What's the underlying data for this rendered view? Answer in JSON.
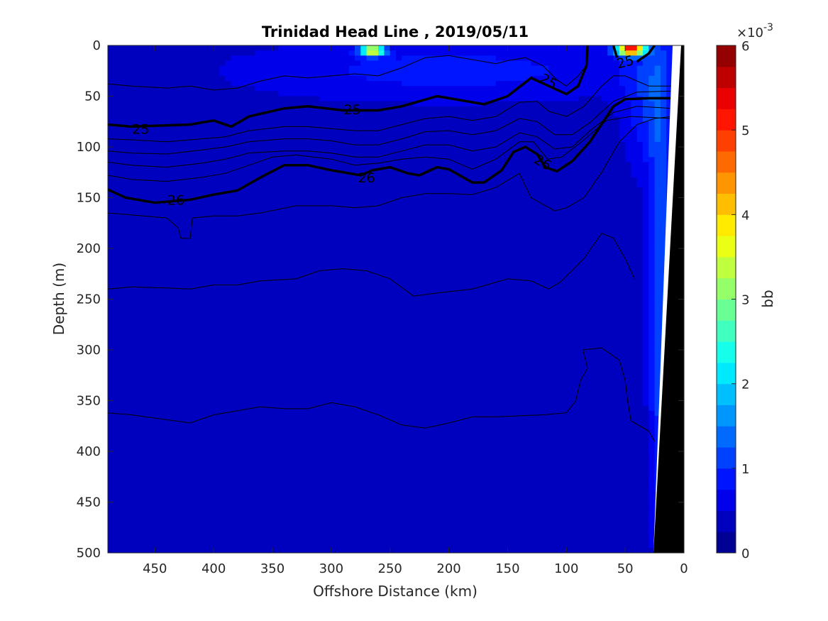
{
  "chart_data": {
    "type": "heatmap",
    "title": "Trinidad Head Line , 2019/05/11",
    "xlabel": "Offshore Distance (km)",
    "ylabel": "Depth (m)",
    "xlim": [
      490,
      0
    ],
    "ylim": [
      500,
      0
    ],
    "x_reversed": true,
    "y_reversed": true,
    "x_ticks": [
      450,
      400,
      350,
      300,
      250,
      200,
      150,
      100,
      50,
      0
    ],
    "y_ticks": [
      0,
      50,
      100,
      150,
      200,
      250,
      300,
      350,
      400,
      450,
      500
    ],
    "colorbar": {
      "label": "bb",
      "multiplier": "×10",
      "exponent": "-3",
      "range": [
        0,
        6
      ],
      "ticks": [
        0,
        1,
        2,
        3,
        4,
        5,
        6
      ],
      "colormap": "jet"
    },
    "bb_field": {
      "units_scale": 0.001,
      "background": 0.35,
      "features": [
        {
          "x": 265,
          "y": 5,
          "sx": 10,
          "sy": 5,
          "v": 3.6
        },
        {
          "x": 45,
          "y": 4,
          "sx": 12,
          "sy": 6,
          "v": 4.9
        },
        {
          "x": 30,
          "y": 55,
          "sx": 22,
          "sy": 70,
          "v": 0.6
        },
        {
          "x": 20,
          "y": 250,
          "sx": 10,
          "sy": 220,
          "v": 0.9
        },
        {
          "x": 200,
          "y": 25,
          "sx": 180,
          "sy": 30,
          "v": 0.5
        }
      ]
    },
    "isopycnal_labels": [
      {
        "x": 462,
        "y": 82,
        "text": "25",
        "rot": 0
      },
      {
        "x": 282,
        "y": 63,
        "text": "25",
        "rot": 0
      },
      {
        "x": 115,
        "y": 35,
        "text": "25",
        "rot": 30
      },
      {
        "x": 50,
        "y": 16,
        "text": "25",
        "rot": -15
      },
      {
        "x": 432,
        "y": 152,
        "text": "26",
        "rot": 0
      },
      {
        "x": 270,
        "y": 130,
        "text": "26",
        "rot": 0
      },
      {
        "x": 120,
        "y": 115,
        "text": "26",
        "rot": 30
      }
    ],
    "contours_major": [
      {
        "label": "25",
        "points": [
          [
            490,
            78
          ],
          [
            470,
            80
          ],
          [
            420,
            78
          ],
          [
            400,
            74
          ],
          [
            385,
            80
          ],
          [
            370,
            70
          ],
          [
            340,
            62
          ],
          [
            320,
            60
          ],
          [
            290,
            64
          ],
          [
            260,
            64
          ],
          [
            240,
            60
          ],
          [
            210,
            50
          ],
          [
            190,
            54
          ],
          [
            170,
            58
          ],
          [
            150,
            50
          ],
          [
            130,
            32
          ],
          [
            115,
            40
          ],
          [
            100,
            48
          ],
          [
            90,
            40
          ],
          [
            83,
            20
          ],
          [
            82,
            0
          ]
        ]
      },
      {
        "label": "25",
        "points": [
          [
            60,
            0
          ],
          [
            57,
            12
          ]
        ]
      },
      {
        "label": "25",
        "points": [
          [
            40,
            16
          ],
          [
            30,
            8
          ],
          [
            25,
            0
          ]
        ]
      },
      {
        "label": "26",
        "points": [
          [
            490,
            142
          ],
          [
            475,
            150
          ],
          [
            450,
            155
          ],
          [
            420,
            152
          ],
          [
            400,
            147
          ],
          [
            380,
            143
          ],
          [
            360,
            130
          ],
          [
            340,
            118
          ],
          [
            320,
            118
          ],
          [
            300,
            123
          ],
          [
            275,
            128
          ],
          [
            265,
            123
          ],
          [
            250,
            120
          ],
          [
            235,
            126
          ],
          [
            225,
            128
          ],
          [
            210,
            120
          ],
          [
            200,
            122
          ],
          [
            180,
            135
          ],
          [
            170,
            135
          ],
          [
            155,
            123
          ],
          [
            145,
            105
          ],
          [
            135,
            100
          ],
          [
            125,
            107
          ],
          [
            118,
            120
          ],
          [
            108,
            124
          ],
          [
            95,
            114
          ],
          [
            80,
            95
          ],
          [
            60,
            60
          ],
          [
            50,
            53
          ],
          [
            30,
            52
          ],
          [
            10,
            52
          ]
        ]
      }
    ],
    "contours_minor": [
      {
        "points": [
          [
            490,
            38
          ],
          [
            470,
            40
          ],
          [
            440,
            42
          ],
          [
            420,
            40
          ],
          [
            400,
            44
          ],
          [
            380,
            42
          ],
          [
            360,
            35
          ],
          [
            340,
            30
          ],
          [
            320,
            32
          ],
          [
            300,
            30
          ],
          [
            280,
            28
          ],
          [
            260,
            30
          ],
          [
            240,
            22
          ],
          [
            220,
            12
          ],
          [
            200,
            10
          ],
          [
            180,
            14
          ],
          [
            160,
            18
          ],
          [
            150,
            15
          ],
          [
            135,
            12
          ],
          [
            120,
            20
          ],
          [
            108,
            34
          ],
          [
            100,
            40
          ],
          [
            90,
            30
          ],
          [
            82,
            18
          ]
        ]
      },
      {
        "points": [
          [
            490,
            92
          ],
          [
            470,
            93
          ],
          [
            440,
            95
          ],
          [
            410,
            92
          ],
          [
            390,
            90
          ],
          [
            370,
            84
          ],
          [
            340,
            80
          ],
          [
            320,
            80
          ],
          [
            300,
            82
          ],
          [
            280,
            84
          ],
          [
            260,
            84
          ],
          [
            240,
            78
          ],
          [
            220,
            72
          ],
          [
            200,
            70
          ],
          [
            180,
            74
          ],
          [
            160,
            70
          ],
          [
            140,
            56
          ],
          [
            125,
            55
          ],
          [
            115,
            65
          ],
          [
            100,
            70
          ],
          [
            85,
            60
          ],
          [
            70,
            40
          ],
          [
            60,
            30
          ],
          [
            50,
            30
          ],
          [
            30,
            40
          ],
          [
            10,
            40
          ]
        ]
      },
      {
        "points": [
          [
            490,
            104
          ],
          [
            470,
            106
          ],
          [
            440,
            107
          ],
          [
            410,
            103
          ],
          [
            390,
            100
          ],
          [
            370,
            95
          ],
          [
            340,
            92
          ],
          [
            320,
            92
          ],
          [
            300,
            94
          ],
          [
            280,
            98
          ],
          [
            260,
            98
          ],
          [
            240,
            92
          ],
          [
            220,
            85
          ],
          [
            200,
            84
          ],
          [
            180,
            88
          ],
          [
            160,
            84
          ],
          [
            140,
            72
          ],
          [
            125,
            75
          ],
          [
            110,
            88
          ],
          [
            95,
            88
          ],
          [
            80,
            76
          ],
          [
            60,
            55
          ],
          [
            40,
            46
          ],
          [
            10,
            45
          ]
        ]
      },
      {
        "points": [
          [
            490,
            115
          ],
          [
            470,
            118
          ],
          [
            440,
            120
          ],
          [
            410,
            116
          ],
          [
            390,
            112
          ],
          [
            370,
            106
          ],
          [
            340,
            104
          ],
          [
            320,
            104
          ],
          [
            300,
            106
          ],
          [
            280,
            110
          ],
          [
            260,
            110
          ],
          [
            240,
            104
          ],
          [
            220,
            98
          ],
          [
            200,
            98
          ],
          [
            180,
            104
          ],
          [
            160,
            100
          ],
          [
            140,
            86
          ],
          [
            125,
            90
          ],
          [
            110,
            102
          ],
          [
            95,
            100
          ],
          [
            80,
            84
          ],
          [
            60,
            66
          ],
          [
            40,
            60
          ],
          [
            10,
            62
          ]
        ]
      },
      {
        "points": [
          [
            490,
            128
          ],
          [
            470,
            132
          ],
          [
            440,
            134
          ],
          [
            410,
            130
          ],
          [
            390,
            126
          ],
          [
            370,
            118
          ],
          [
            350,
            110
          ],
          [
            330,
            108
          ],
          [
            300,
            112
          ],
          [
            280,
            118
          ],
          [
            260,
            116
          ],
          [
            240,
            112
          ],
          [
            220,
            110
          ],
          [
            200,
            112
          ],
          [
            180,
            122
          ],
          [
            160,
            112
          ],
          [
            140,
            95
          ],
          [
            128,
            95
          ],
          [
            116,
            112
          ],
          [
            104,
            110
          ],
          [
            86,
            94
          ],
          [
            66,
            74
          ],
          [
            45,
            70
          ],
          [
            10,
            72
          ]
        ]
      },
      {
        "points": [
          [
            490,
            165
          ],
          [
            460,
            168
          ],
          [
            440,
            170
          ],
          [
            430,
            180
          ],
          [
            428,
            190
          ],
          [
            420,
            190
          ],
          [
            418,
            170
          ],
          [
            400,
            168
          ],
          [
            380,
            168
          ],
          [
            360,
            165
          ],
          [
            330,
            158
          ],
          [
            300,
            158
          ],
          [
            280,
            160
          ],
          [
            260,
            158
          ],
          [
            240,
            150
          ],
          [
            220,
            146
          ],
          [
            200,
            146
          ],
          [
            180,
            147
          ],
          [
            160,
            140
          ],
          [
            140,
            126
          ],
          [
            130,
            150
          ],
          [
            110,
            163
          ],
          [
            100,
            160
          ],
          [
            85,
            150
          ],
          [
            70,
            125
          ],
          [
            55,
            95
          ],
          [
            40,
            78
          ],
          [
            25,
            72
          ],
          [
            10,
            70
          ]
        ]
      },
      {
        "points": [
          [
            490,
            240
          ],
          [
            470,
            238
          ],
          [
            440,
            239
          ],
          [
            420,
            240
          ],
          [
            400,
            236
          ],
          [
            380,
            236
          ],
          [
            360,
            232
          ],
          [
            330,
            230
          ],
          [
            310,
            222
          ],
          [
            290,
            220
          ],
          [
            270,
            222
          ],
          [
            250,
            230
          ],
          [
            230,
            247
          ],
          [
            210,
            244
          ],
          [
            180,
            240
          ],
          [
            150,
            230
          ],
          [
            130,
            232
          ],
          [
            115,
            240
          ],
          [
            105,
            233
          ],
          [
            85,
            210
          ],
          [
            70,
            185
          ],
          [
            60,
            190
          ],
          [
            50,
            210
          ],
          [
            42,
            230
          ]
        ]
      },
      {
        "points": [
          [
            490,
            362
          ],
          [
            470,
            364
          ],
          [
            445,
            368
          ],
          [
            420,
            372
          ],
          [
            400,
            364
          ],
          [
            380,
            360
          ],
          [
            360,
            356
          ],
          [
            340,
            358
          ],
          [
            320,
            358
          ],
          [
            300,
            352
          ],
          [
            280,
            356
          ],
          [
            260,
            364
          ],
          [
            240,
            374
          ],
          [
            220,
            377
          ],
          [
            200,
            372
          ],
          [
            180,
            366
          ],
          [
            160,
            366
          ],
          [
            140,
            365
          ],
          [
            120,
            364
          ],
          [
            100,
            362
          ],
          [
            92,
            350
          ],
          [
            88,
            330
          ],
          [
            82,
            318
          ],
          [
            86,
            300
          ],
          [
            70,
            298
          ],
          [
            55,
            310
          ],
          [
            50,
            330
          ],
          [
            48,
            350
          ],
          [
            45,
            370
          ],
          [
            30,
            380
          ],
          [
            25,
            390
          ]
        ]
      }
    ]
  }
}
